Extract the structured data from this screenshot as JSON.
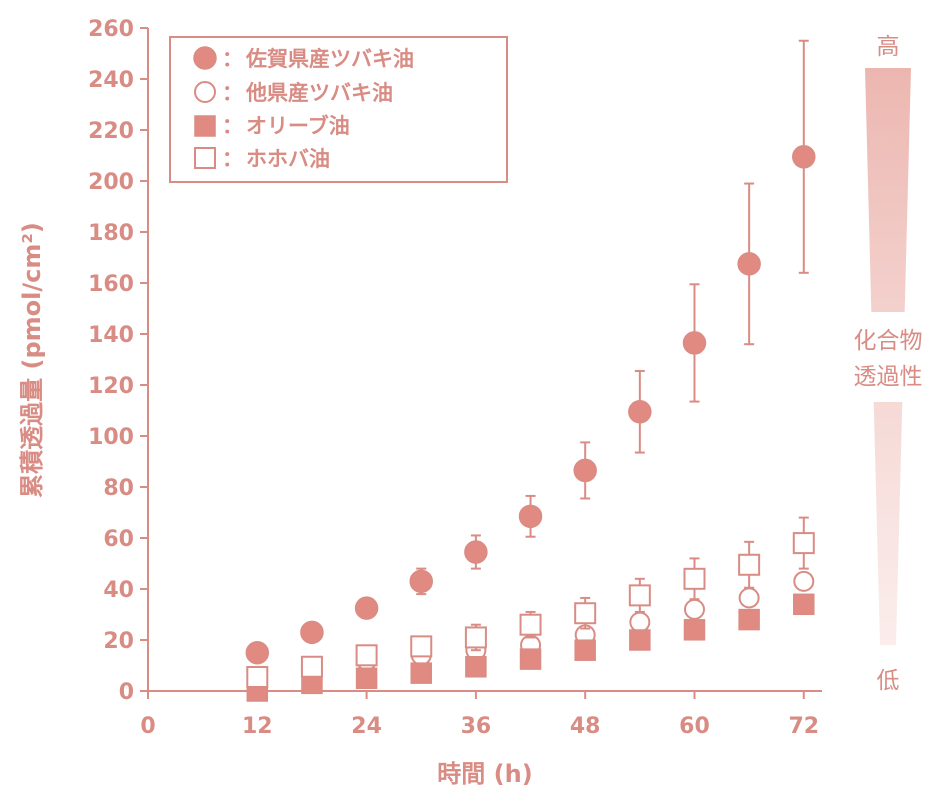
{
  "colors": {
    "accent": "#D98C84",
    "fill": "#E08A82",
    "open": "#ffffff"
  },
  "chart_data": {
    "type": "scatter",
    "x": [
      12,
      18,
      24,
      30,
      36,
      42,
      48,
      54,
      60,
      66,
      72
    ],
    "xlabel": "時間 (h)",
    "ylabel": "累積透過量 (pmol/cm²)",
    "xlim": [
      0,
      74
    ],
    "ylim": [
      0,
      260
    ],
    "xticks": [
      0,
      12,
      24,
      36,
      48,
      60,
      72
    ],
    "yticks": [
      0,
      20,
      40,
      60,
      80,
      100,
      120,
      140,
      160,
      180,
      200,
      220,
      240,
      260
    ],
    "grid": false,
    "legend_position": "top-left",
    "series": [
      {
        "name": "佐賀県産ツバキ油",
        "marker": "circle-filled",
        "values": [
          15,
          23,
          32.5,
          43,
          54.5,
          68.5,
          86.5,
          109.5,
          136.5,
          167.5,
          209.5
        ],
        "error": [
          null,
          null,
          null,
          5,
          6.5,
          8,
          11,
          16,
          23,
          31.5,
          45.5
        ]
      },
      {
        "name": "他県産ツバキ油",
        "marker": "circle-open",
        "values": [
          4,
          8,
          12,
          14,
          16,
          18,
          22,
          27,
          32,
          36.5,
          43
        ],
        "error": [
          null,
          null,
          null,
          null,
          null,
          null,
          null,
          null,
          null,
          null,
          null
        ]
      },
      {
        "name": "オリーブ油",
        "marker": "square-filled",
        "values": [
          0,
          3,
          5,
          7,
          9.5,
          12.5,
          16,
          20,
          24,
          28,
          34
        ],
        "error": [
          null,
          null,
          null,
          null,
          null,
          null,
          null,
          null,
          null,
          null,
          null
        ]
      },
      {
        "name": "ホホバ油",
        "marker": "square-open",
        "values": [
          5.5,
          9.5,
          14,
          17.5,
          21,
          26,
          30.5,
          37.5,
          44,
          49.5,
          58
        ],
        "error": [
          null,
          null,
          null,
          null,
          5,
          5,
          6,
          6.5,
          8,
          9,
          10
        ]
      }
    ]
  },
  "legend_sep": "：",
  "side_scale": {
    "top_label": "高",
    "middle_label_line1": "化合物",
    "middle_label_line2": "透過性",
    "bottom_label": "低"
  }
}
